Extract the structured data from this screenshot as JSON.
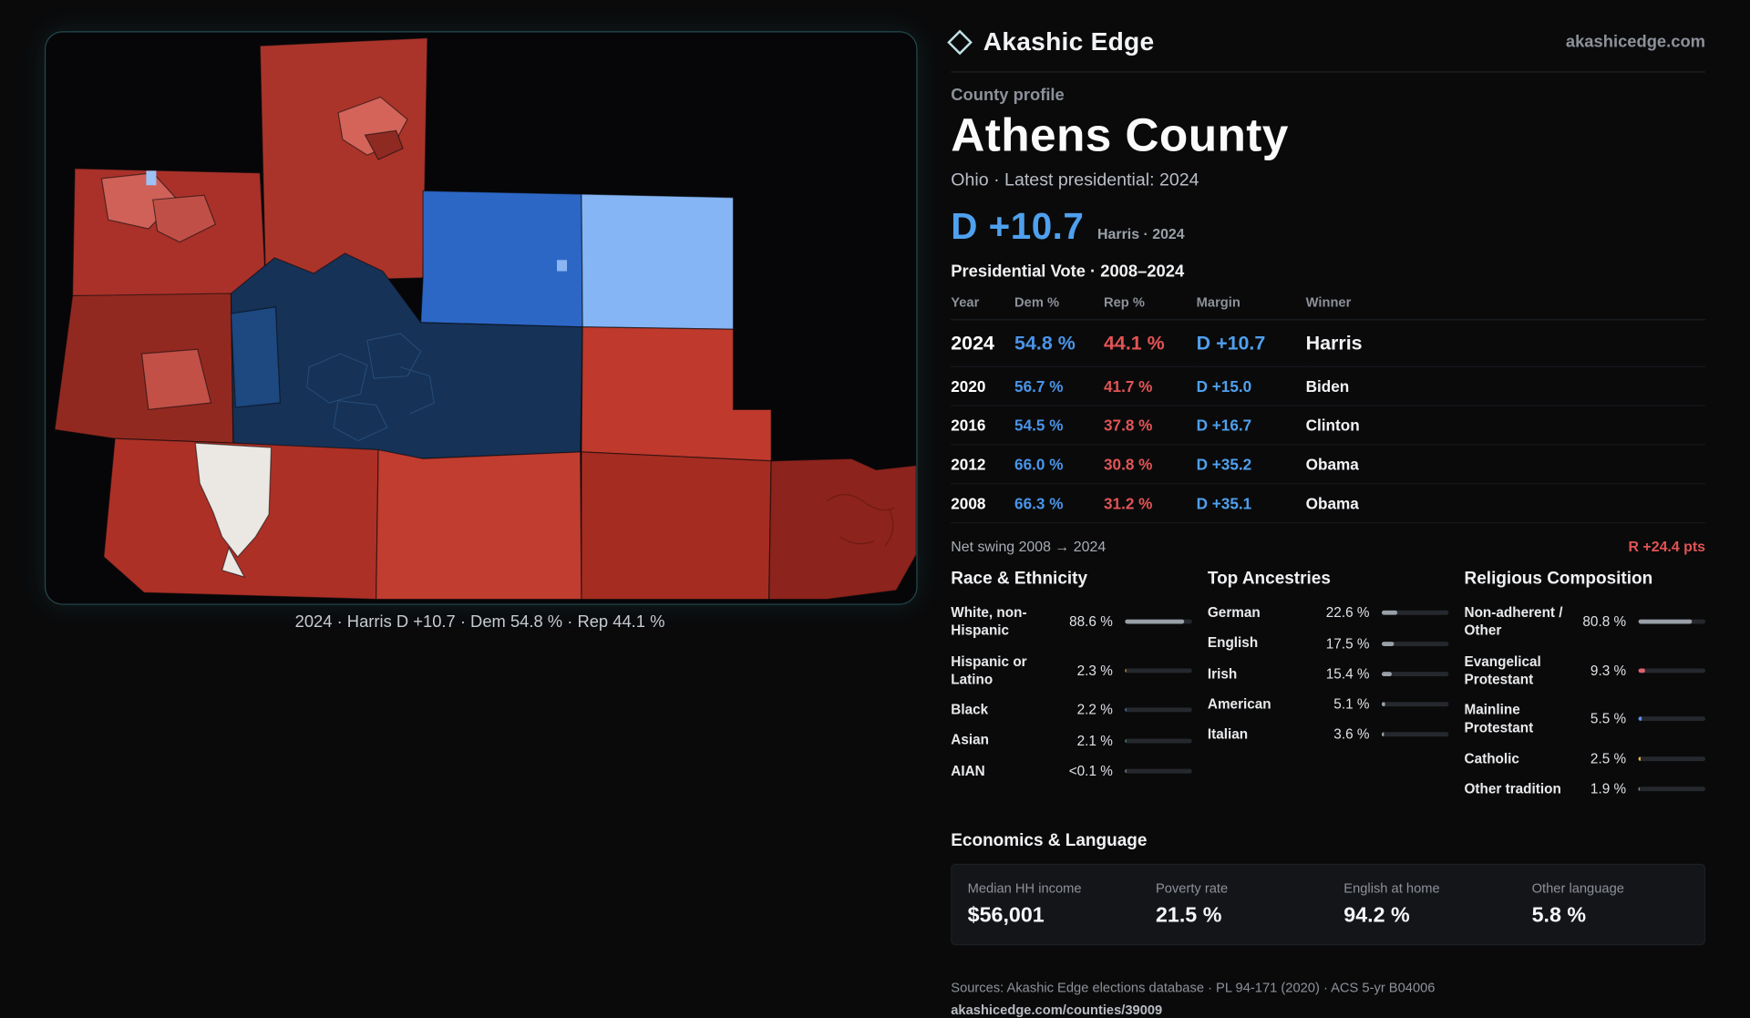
{
  "brand": {
    "name": "Akashic Edge",
    "domain": "akashicedge.com"
  },
  "profile": {
    "kicker": "County profile",
    "title": "Athens County",
    "subtitle": "Ohio · Latest presidential: 2024",
    "headline_margin": "D +10.7",
    "headline_note": "Harris · 2024"
  },
  "colors": {
    "dem": "#4a94e8",
    "rep": "#e25454",
    "accent_glow": "#46bec8"
  },
  "map": {
    "caption": "2024 · Harris D +10.7 · Dem 54.8 % · Rep 44.1 %"
  },
  "vote_table": {
    "title": "Presidential Vote · 2008–2024",
    "columns": [
      "Year",
      "Dem %",
      "Rep %",
      "Margin",
      "Winner"
    ],
    "rows": [
      {
        "year": "2024",
        "dem": "54.8 %",
        "rep": "44.1 %",
        "margin": "D +10.7",
        "winner": "Harris",
        "highlight": true
      },
      {
        "year": "2020",
        "dem": "56.7 %",
        "rep": "41.7 %",
        "margin": "D +15.0",
        "winner": "Biden",
        "highlight": false
      },
      {
        "year": "2016",
        "dem": "54.5 %",
        "rep": "37.8 %",
        "margin": "D +16.7",
        "winner": "Clinton",
        "highlight": false
      },
      {
        "year": "2012",
        "dem": "66.0 %",
        "rep": "30.8 %",
        "margin": "D +35.2",
        "winner": "Obama",
        "highlight": false
      },
      {
        "year": "2008",
        "dem": "66.3 %",
        "rep": "31.2 %",
        "margin": "D +35.1",
        "winner": "Obama",
        "highlight": false
      }
    ],
    "net_swing_label": "Net swing 2008 → 2024",
    "net_swing_value": "R +24.4 pts"
  },
  "demographics": [
    {
      "id": "race",
      "heading": "Race & Ethnicity",
      "rows": [
        {
          "label": "White, non-Hispanic",
          "value": "88.6 %",
          "pct": 88.6,
          "color": "#9aa0a8"
        },
        {
          "label": "Hispanic or Latino",
          "value": "2.3 %",
          "pct": 2.3,
          "color": "#e0a13e"
        },
        {
          "label": "Black",
          "value": "2.2 %",
          "pct": 2.2,
          "color": "#5b8def"
        },
        {
          "label": "Asian",
          "value": "2.1 %",
          "pct": 2.1,
          "color": "#3bb08a"
        },
        {
          "label": "AIAN",
          "value": "<0.1 %",
          "pct": 0.1,
          "color": "#9aa0a8"
        }
      ]
    },
    {
      "id": "ancestries",
      "heading": "Top Ancestries",
      "rows": [
        {
          "label": "German",
          "value": "22.6 %",
          "pct": 22.6,
          "color": "#9aa0a8"
        },
        {
          "label": "English",
          "value": "17.5 %",
          "pct": 17.5,
          "color": "#9aa0a8"
        },
        {
          "label": "Irish",
          "value": "15.4 %",
          "pct": 15.4,
          "color": "#9aa0a8"
        },
        {
          "label": "American",
          "value": "5.1 %",
          "pct": 5.1,
          "color": "#9aa0a8"
        },
        {
          "label": "Italian",
          "value": "3.6 %",
          "pct": 3.6,
          "color": "#9aa0a8"
        }
      ]
    },
    {
      "id": "religion",
      "heading": "Religious Composition",
      "rows": [
        {
          "label": "Non-adherent / Other",
          "value": "80.8 %",
          "pct": 80.8,
          "color": "#9aa0a8"
        },
        {
          "label": "Evangelical Protestant",
          "value": "9.3 %",
          "pct": 9.3,
          "color": "#e0606c"
        },
        {
          "label": "Mainline Protestant",
          "value": "5.5 %",
          "pct": 5.5,
          "color": "#5b8def"
        },
        {
          "label": "Catholic",
          "value": "2.5 %",
          "pct": 2.5,
          "color": "#e0b23e"
        },
        {
          "label": "Other tradition",
          "value": "1.9 %",
          "pct": 1.9,
          "color": "#9aa0a8"
        }
      ]
    }
  ],
  "economics": {
    "heading": "Economics & Language",
    "stats": [
      {
        "label": "Median HH income",
        "value": "$56,001"
      },
      {
        "label": "Poverty rate",
        "value": "21.5 %"
      },
      {
        "label": "English at home",
        "value": "94.2 %"
      },
      {
        "label": "Other language",
        "value": "5.8 %"
      }
    ]
  },
  "footer": {
    "sources": "Sources: Akashic Edge elections database · PL 94-171 (2020) · ACS 5-yr B04006",
    "permalink": "akashicedge.com/counties/39009"
  }
}
